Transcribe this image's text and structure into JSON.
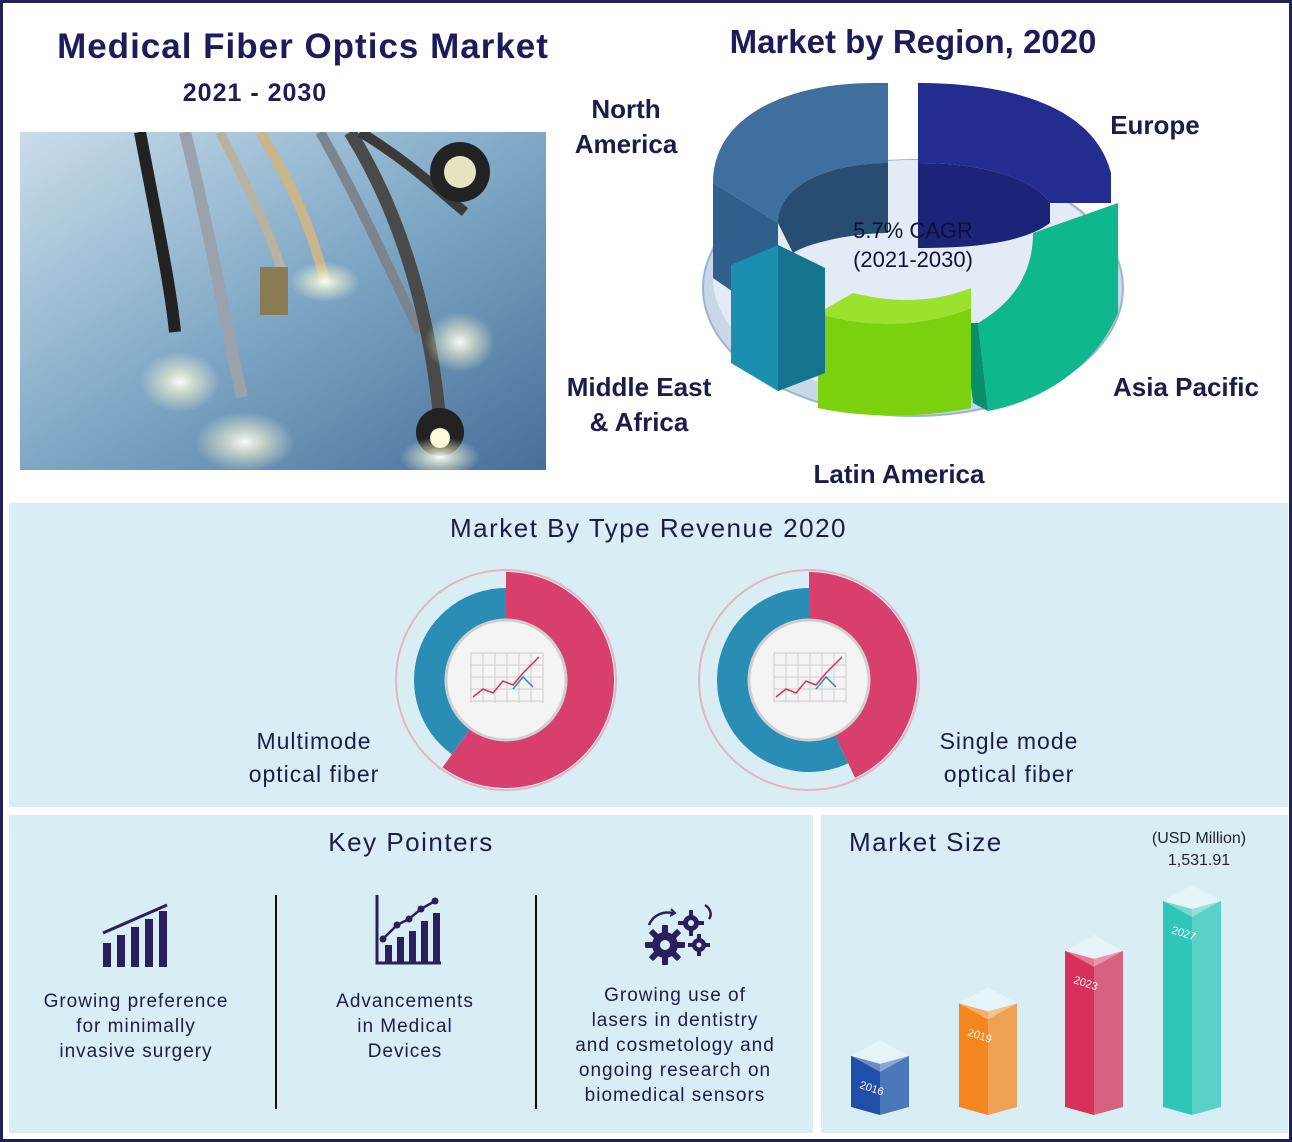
{
  "header": {
    "title": "Medical Fiber Optics Market",
    "years": "2021 - 2030"
  },
  "region_section": {
    "title": "Market by Region, 2020",
    "center_line1": "5.7% CAGR",
    "center_line2": "(2021-2030)",
    "regions": [
      {
        "name_line1": "North",
        "name_line2": "America",
        "color": "#3f6f9e"
      },
      {
        "name_line1": "Europe",
        "name_line2": "",
        "color": "#232d8f"
      },
      {
        "name_line1": "Asia Pacific",
        "name_line2": "",
        "color": "#0fb88c"
      },
      {
        "name_line1": "Latin America",
        "name_line2": "",
        "color": "#7bd10e"
      },
      {
        "name_line1": "Middle East",
        "name_line2": "& Africa",
        "color": "#1b8fb0"
      }
    ]
  },
  "type_section": {
    "title": "Market By Type Revenue 2020",
    "items": [
      {
        "line1": "Multimode",
        "line2": "optical fiber",
        "share": 0.6
      },
      {
        "line1": "Single mode",
        "line2": "optical fiber",
        "share": 0.43
      }
    ],
    "colors": {
      "share": "#d93f6d",
      "rest": "#2a8db5"
    }
  },
  "key_pointers": {
    "title": "Key Pointers",
    "items": [
      {
        "icon": "bar-chart-icon",
        "lines": [
          "Growing preference",
          "for minimally",
          "invasive surgery"
        ]
      },
      {
        "icon": "trend-chart-icon",
        "lines": [
          "Advancements",
          "in Medical",
          "Devices"
        ]
      },
      {
        "icon": "gears-icon",
        "lines": [
          "Growing use of",
          "lasers in dentistry",
          "and cosmetology and",
          "ongoing research on",
          "biomedical sensors"
        ]
      }
    ]
  },
  "chart_data": {
    "type": "bar",
    "title": "Market Size",
    "unit": "(USD Million)",
    "top_value_label": "1,531.91",
    "categories": [
      "2016",
      "2019",
      "2023",
      "2027"
    ],
    "values": [
      500,
      850,
      1200,
      1531.91
    ],
    "colors": [
      "#1f4fa8",
      "#f5851f",
      "#d8305a",
      "#2fc7b8"
    ]
  }
}
